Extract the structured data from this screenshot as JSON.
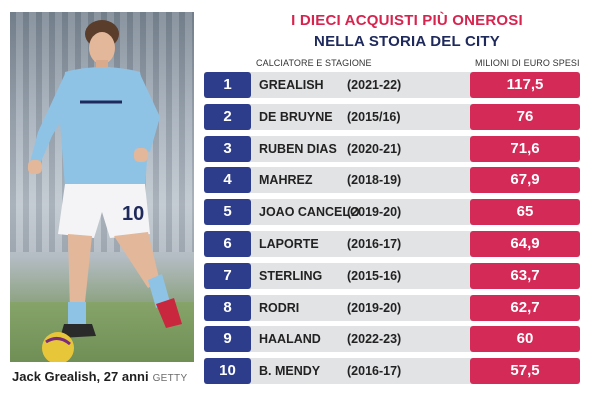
{
  "title": {
    "line1": "I DIECI ACQUISTI PIÙ ONEROSI",
    "line2": "NELLA STORIA DEL CITY"
  },
  "columns": {
    "left": "CALCIATORE E STAGIONE",
    "right": "MILIONI DI EURO SPESI"
  },
  "photo": {
    "caption": "Jack Grealish, 27 anni",
    "credit": "GETTY",
    "shirt_number": "10"
  },
  "rows": [
    {
      "rank": "1",
      "player": "GREALISH",
      "season": "(2021-22)",
      "amount": "117,5"
    },
    {
      "rank": "2",
      "player": "DE BRUYNE",
      "season": "(2015/16)",
      "amount": "76"
    },
    {
      "rank": "3",
      "player": "RUBEN DIAS",
      "season": "(2020-21)",
      "amount": "71,6"
    },
    {
      "rank": "4",
      "player": "MAHREZ",
      "season": "(2018-19)",
      "amount": "67,9"
    },
    {
      "rank": "5",
      "player": "JOAO CANCELO",
      "season": "(2019-20)",
      "amount": "65"
    },
    {
      "rank": "6",
      "player": "LAPORTE",
      "season": "(2016-17)",
      "amount": "64,9"
    },
    {
      "rank": "7",
      "player": "STERLING",
      "season": "(2015-16)",
      "amount": "63,7"
    },
    {
      "rank": "8",
      "player": "RODRI",
      "season": "(2019-20)",
      "amount": "62,7"
    },
    {
      "rank": "9",
      "player": "HAALAND",
      "season": "(2022-23)",
      "amount": "60"
    },
    {
      "rank": "10",
      "player": "B. MENDY",
      "season": "(2016-17)",
      "amount": "57,5"
    }
  ],
  "colors": {
    "rank_blue": "#2d3d8c",
    "amount_red": "#d32a57",
    "title_red": "#d7244f",
    "title_navy": "#1f2a5c",
    "row_grey": "#e2e3e5"
  }
}
